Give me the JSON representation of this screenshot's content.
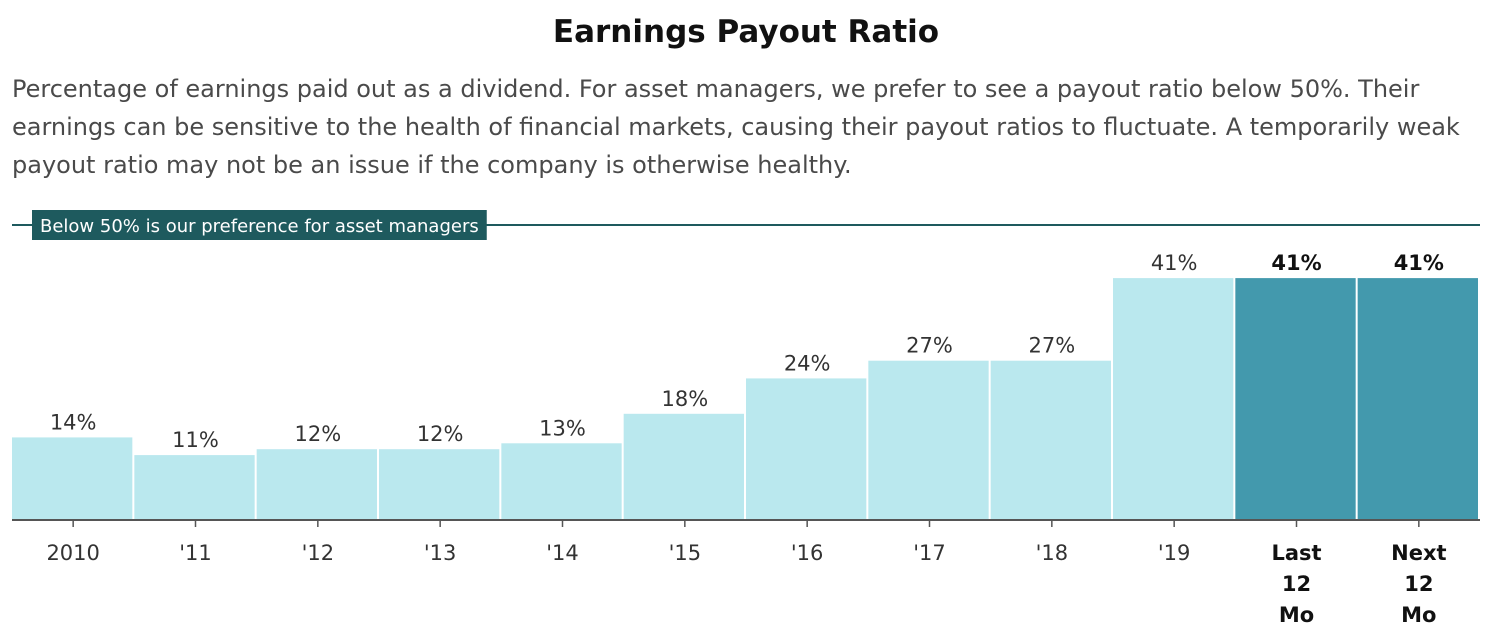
{
  "title": "Earnings Payout Ratio",
  "subtitle": "Percentage of earnings paid out as a dividend. For asset managers, we prefer to see a payout ratio below 50%. Their earnings can be sensitive to the health of financial markets, causing their payout ratios to fluctuate. A temporarily weak payout ratio may not be an issue if the company is otherwise healthy.",
  "colors": {
    "bar_historical": "#bae8ee",
    "bar_current": "#4399ad",
    "reference_line": "#1e5a5e",
    "axis": "#555555",
    "text": "#333333"
  },
  "chart_data": {
    "type": "bar",
    "categories": [
      "2010",
      "'11",
      "'12",
      "'13",
      "'14",
      "'15",
      "'16",
      "'17",
      "'18",
      "'19",
      "Last 12 Mo",
      "Next 12 Mo"
    ],
    "category_lines": [
      [
        "2010"
      ],
      [
        "'11"
      ],
      [
        "'12"
      ],
      [
        "'13"
      ],
      [
        "'14"
      ],
      [
        "'15"
      ],
      [
        "'16"
      ],
      [
        "'17"
      ],
      [
        "'18"
      ],
      [
        "'19"
      ],
      [
        "Last",
        "12",
        "Mo"
      ],
      [
        "Next",
        "12",
        "Mo"
      ]
    ],
    "values": [
      14,
      11,
      12,
      12,
      13,
      18,
      24,
      27,
      27,
      41,
      41,
      41
    ],
    "value_labels": [
      "14%",
      "11%",
      "12%",
      "12%",
      "13%",
      "18%",
      "24%",
      "27%",
      "27%",
      "41%",
      "41%",
      "41%"
    ],
    "highlight": [
      false,
      false,
      false,
      false,
      false,
      false,
      false,
      false,
      false,
      false,
      true,
      true
    ],
    "ylim": [
      0,
      50
    ],
    "reference_line": {
      "value": 50,
      "label": "Below 50% is our preference for asset managers"
    },
    "xlabel": "",
    "ylabel": "",
    "grid": false
  }
}
